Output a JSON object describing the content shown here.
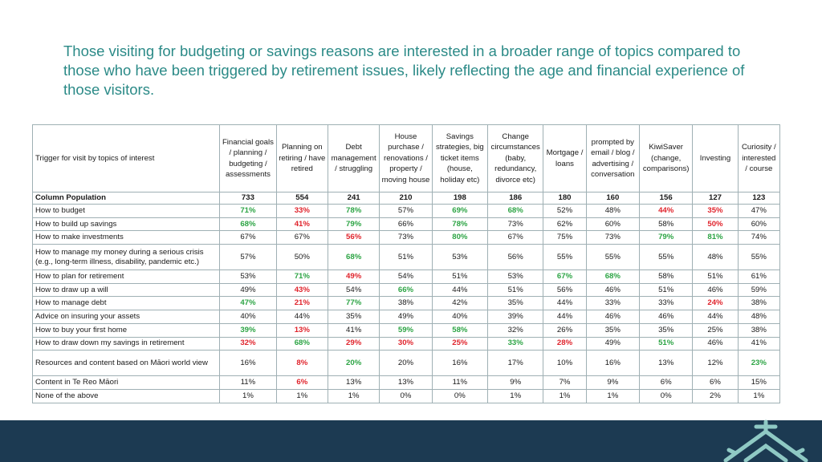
{
  "headline": "Those visiting for budgeting or savings reasons are interested in a broader range of topics compared to those who have been triggered by retirement issues, likely reflecting the age and financial experience of those visitors.",
  "table": {
    "corner_label": "Trigger for visit by topics of interest",
    "columns": [
      "Financial goals / planning / budgeting / assessments",
      "Planning on retiring / have retired",
      "Debt management / struggling",
      "House purchase / renovations / property / moving house",
      "Savings strategies, big ticket items (house, holiday etc)",
      "Change circumstances (baby, redundancy, divorce etc)",
      "Mortgage / loans",
      "prompted by email / blog / advertising / conversation",
      "KiwiSaver (change, comparisons)",
      "Investing",
      "Curiosity / interested / course"
    ],
    "population": {
      "label": "Column Population",
      "values": [
        "733",
        "554",
        "241",
        "210",
        "198",
        "186",
        "180",
        "160",
        "156",
        "127",
        "123"
      ]
    },
    "rows": [
      {
        "label": "How to budget",
        "cells": [
          {
            "v": "71%",
            "s": "g"
          },
          {
            "v": "33%",
            "s": "r"
          },
          {
            "v": "78%",
            "s": "g"
          },
          {
            "v": "57%",
            "s": ""
          },
          {
            "v": "69%",
            "s": "g"
          },
          {
            "v": "68%",
            "s": "g"
          },
          {
            "v": "52%",
            "s": ""
          },
          {
            "v": "48%",
            "s": ""
          },
          {
            "v": "44%",
            "s": "r"
          },
          {
            "v": "35%",
            "s": "r"
          },
          {
            "v": "47%",
            "s": ""
          }
        ]
      },
      {
        "label": "How to build up savings",
        "cells": [
          {
            "v": "68%",
            "s": "g"
          },
          {
            "v": "41%",
            "s": "r"
          },
          {
            "v": "79%",
            "s": "g"
          },
          {
            "v": "66%",
            "s": ""
          },
          {
            "v": "78%",
            "s": "g"
          },
          {
            "v": "73%",
            "s": ""
          },
          {
            "v": "62%",
            "s": ""
          },
          {
            "v": "60%",
            "s": ""
          },
          {
            "v": "58%",
            "s": ""
          },
          {
            "v": "50%",
            "s": "r"
          },
          {
            "v": "60%",
            "s": ""
          }
        ]
      },
      {
        "label": "How to make investments",
        "cells": [
          {
            "v": "67%",
            "s": ""
          },
          {
            "v": "67%",
            "s": ""
          },
          {
            "v": "56%",
            "s": "r"
          },
          {
            "v": "73%",
            "s": ""
          },
          {
            "v": "80%",
            "s": "g"
          },
          {
            "v": "67%",
            "s": ""
          },
          {
            "v": "75%",
            "s": ""
          },
          {
            "v": "73%",
            "s": ""
          },
          {
            "v": "79%",
            "s": "g"
          },
          {
            "v": "81%",
            "s": "g"
          },
          {
            "v": "74%",
            "s": ""
          }
        ]
      },
      {
        "label": "How to manage my money during a serious crisis (e.g., long-term illness, disability, pandemic etc.)",
        "tall": true,
        "cells": [
          {
            "v": "57%",
            "s": ""
          },
          {
            "v": "50%",
            "s": ""
          },
          {
            "v": "68%",
            "s": "g"
          },
          {
            "v": "51%",
            "s": ""
          },
          {
            "v": "53%",
            "s": ""
          },
          {
            "v": "56%",
            "s": ""
          },
          {
            "v": "55%",
            "s": ""
          },
          {
            "v": "55%",
            "s": ""
          },
          {
            "v": "55%",
            "s": ""
          },
          {
            "v": "48%",
            "s": ""
          },
          {
            "v": "55%",
            "s": ""
          }
        ]
      },
      {
        "label": "How to plan for retirement",
        "cells": [
          {
            "v": "53%",
            "s": ""
          },
          {
            "v": "71%",
            "s": "g"
          },
          {
            "v": "49%",
            "s": "r"
          },
          {
            "v": "54%",
            "s": ""
          },
          {
            "v": "51%",
            "s": ""
          },
          {
            "v": "53%",
            "s": ""
          },
          {
            "v": "67%",
            "s": "g"
          },
          {
            "v": "68%",
            "s": "g"
          },
          {
            "v": "58%",
            "s": ""
          },
          {
            "v": "51%",
            "s": ""
          },
          {
            "v": "61%",
            "s": ""
          }
        ]
      },
      {
        "label": "How to draw up a will",
        "cells": [
          {
            "v": "49%",
            "s": ""
          },
          {
            "v": "43%",
            "s": "r"
          },
          {
            "v": "54%",
            "s": ""
          },
          {
            "v": "66%",
            "s": "g"
          },
          {
            "v": "44%",
            "s": ""
          },
          {
            "v": "51%",
            "s": ""
          },
          {
            "v": "56%",
            "s": ""
          },
          {
            "v": "46%",
            "s": ""
          },
          {
            "v": "51%",
            "s": ""
          },
          {
            "v": "46%",
            "s": ""
          },
          {
            "v": "59%",
            "s": ""
          }
        ]
      },
      {
        "label": "How to manage debt",
        "cells": [
          {
            "v": "47%",
            "s": "g"
          },
          {
            "v": "21%",
            "s": "r"
          },
          {
            "v": "77%",
            "s": "g"
          },
          {
            "v": "38%",
            "s": ""
          },
          {
            "v": "42%",
            "s": ""
          },
          {
            "v": "35%",
            "s": ""
          },
          {
            "v": "44%",
            "s": ""
          },
          {
            "v": "33%",
            "s": ""
          },
          {
            "v": "33%",
            "s": ""
          },
          {
            "v": "24%",
            "s": "r"
          },
          {
            "v": "38%",
            "s": ""
          }
        ]
      },
      {
        "label": "Advice on insuring your assets",
        "cells": [
          {
            "v": "40%",
            "s": ""
          },
          {
            "v": "44%",
            "s": ""
          },
          {
            "v": "35%",
            "s": ""
          },
          {
            "v": "49%",
            "s": ""
          },
          {
            "v": "40%",
            "s": ""
          },
          {
            "v": "39%",
            "s": ""
          },
          {
            "v": "44%",
            "s": ""
          },
          {
            "v": "46%",
            "s": ""
          },
          {
            "v": "46%",
            "s": ""
          },
          {
            "v": "44%",
            "s": ""
          },
          {
            "v": "48%",
            "s": ""
          }
        ]
      },
      {
        "label": "How to buy your first home",
        "cells": [
          {
            "v": "39%",
            "s": "g"
          },
          {
            "v": "13%",
            "s": "r"
          },
          {
            "v": "41%",
            "s": ""
          },
          {
            "v": "59%",
            "s": "g"
          },
          {
            "v": "58%",
            "s": "g"
          },
          {
            "v": "32%",
            "s": ""
          },
          {
            "v": "26%",
            "s": ""
          },
          {
            "v": "35%",
            "s": ""
          },
          {
            "v": "35%",
            "s": ""
          },
          {
            "v": "25%",
            "s": ""
          },
          {
            "v": "38%",
            "s": ""
          }
        ]
      },
      {
        "label": "How to draw down my savings in retirement",
        "cells": [
          {
            "v": "32%",
            "s": "r"
          },
          {
            "v": "68%",
            "s": "g"
          },
          {
            "v": "29%",
            "s": "r"
          },
          {
            "v": "30%",
            "s": "r"
          },
          {
            "v": "25%",
            "s": "r"
          },
          {
            "v": "33%",
            "s": "g"
          },
          {
            "v": "28%",
            "s": "r"
          },
          {
            "v": "49%",
            "s": ""
          },
          {
            "v": "51%",
            "s": "g"
          },
          {
            "v": "46%",
            "s": ""
          },
          {
            "v": "41%",
            "s": ""
          }
        ]
      },
      {
        "label": "Resources and content based on Māori world view",
        "tall": true,
        "cells": [
          {
            "v": "16%",
            "s": ""
          },
          {
            "v": "8%",
            "s": "r"
          },
          {
            "v": "20%",
            "s": "g"
          },
          {
            "v": "20%",
            "s": ""
          },
          {
            "v": "16%",
            "s": ""
          },
          {
            "v": "17%",
            "s": ""
          },
          {
            "v": "10%",
            "s": ""
          },
          {
            "v": "16%",
            "s": ""
          },
          {
            "v": "13%",
            "s": ""
          },
          {
            "v": "12%",
            "s": ""
          },
          {
            "v": "23%",
            "s": "g"
          }
        ]
      },
      {
        "label": "Content in Te Reo Māori",
        "cells": [
          {
            "v": "11%",
            "s": ""
          },
          {
            "v": "6%",
            "s": "r"
          },
          {
            "v": "13%",
            "s": ""
          },
          {
            "v": "13%",
            "s": ""
          },
          {
            "v": "11%",
            "s": ""
          },
          {
            "v": "9%",
            "s": ""
          },
          {
            "v": "7%",
            "s": ""
          },
          {
            "v": "9%",
            "s": ""
          },
          {
            "v": "6%",
            "s": ""
          },
          {
            "v": "6%",
            "s": ""
          },
          {
            "v": "15%",
            "s": ""
          }
        ]
      },
      {
        "label": "None of the above",
        "cells": [
          {
            "v": "1%",
            "s": ""
          },
          {
            "v": "1%",
            "s": ""
          },
          {
            "v": "1%",
            "s": ""
          },
          {
            "v": "0%",
            "s": ""
          },
          {
            "v": "0%",
            "s": ""
          },
          {
            "v": "1%",
            "s": ""
          },
          {
            "v": "1%",
            "s": ""
          },
          {
            "v": "1%",
            "s": ""
          },
          {
            "v": "0%",
            "s": ""
          },
          {
            "v": "2%",
            "s": ""
          },
          {
            "v": "1%",
            "s": ""
          }
        ]
      }
    ]
  },
  "colors": {
    "headline": "#2b8a87",
    "positive": "#2ca444",
    "negative": "#e0242c",
    "footer": "#1c3a52",
    "logo": "#8fc9c4"
  },
  "footer": {
    "logo_icon": "roof-logo-icon"
  }
}
